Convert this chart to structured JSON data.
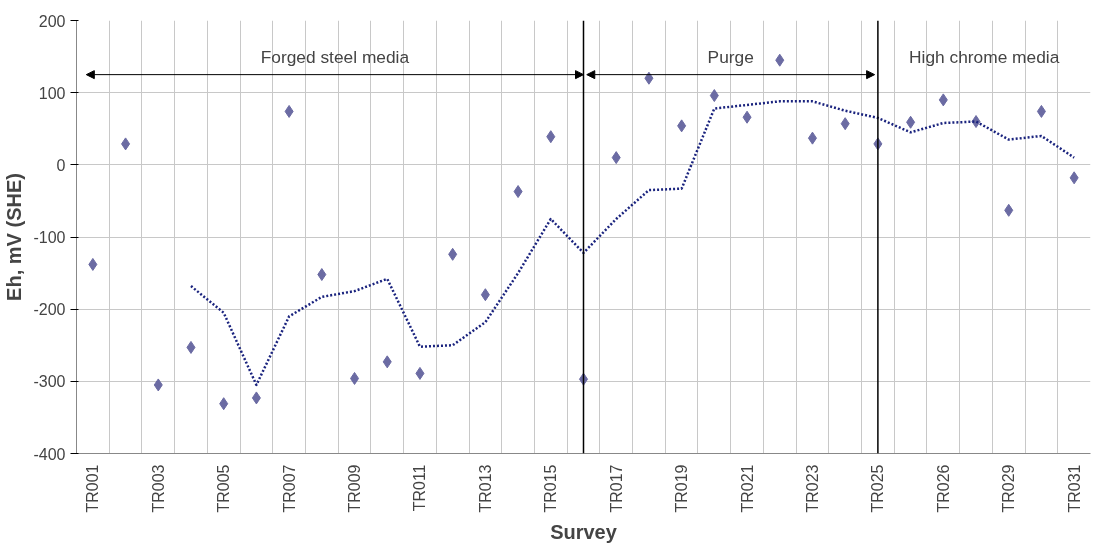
{
  "chart_data": {
    "type": "scatter",
    "xlabel": "Survey",
    "ylabel": "Eh, mV (SHE)",
    "categories": [
      "TR001",
      null,
      "TR003",
      null,
      "TR005",
      null,
      "TR007",
      null,
      "TR009",
      null,
      "TR011",
      null,
      "TR013",
      null,
      "TR015",
      null,
      "TR017",
      null,
      "TR019",
      null,
      "TR021",
      null,
      "TR023",
      null,
      "TR025",
      null,
      "TR026",
      null,
      "TR029",
      null,
      "TR031"
    ],
    "series": [
      {
        "color": "#6b6ba3",
        "marker": "diamond",
        "values": [
          -138,
          29,
          -305,
          -253,
          -331,
          -323,
          74,
          -152,
          -296,
          -273,
          -289,
          -124,
          -180,
          -37,
          39,
          -297,
          10,
          120,
          54,
          96,
          66,
          145,
          37,
          57,
          29,
          59,
          90,
          60,
          -63,
          74,
          -18
        ]
      },
      {
        "type": "line",
        "color": "#1a237e",
        "line_style": "dotted",
        "values": [
          null,
          null,
          null,
          -168,
          -205,
          -305,
          -210,
          -183,
          -175,
          -158,
          -252,
          -250,
          -218,
          -150,
          -75,
          -122,
          -75,
          -35,
          -33,
          78,
          83,
          88,
          88,
          75,
          65,
          45,
          58,
          60,
          35,
          40,
          10
        ]
      }
    ],
    "ylim": [
      -400,
      200
    ],
    "yticks": [
      -400,
      -300,
      -200,
      -100,
      0,
      100,
      200
    ],
    "grid": true,
    "annotations": [
      "Forged steel media",
      "Purge",
      "High chrome media"
    ]
  }
}
